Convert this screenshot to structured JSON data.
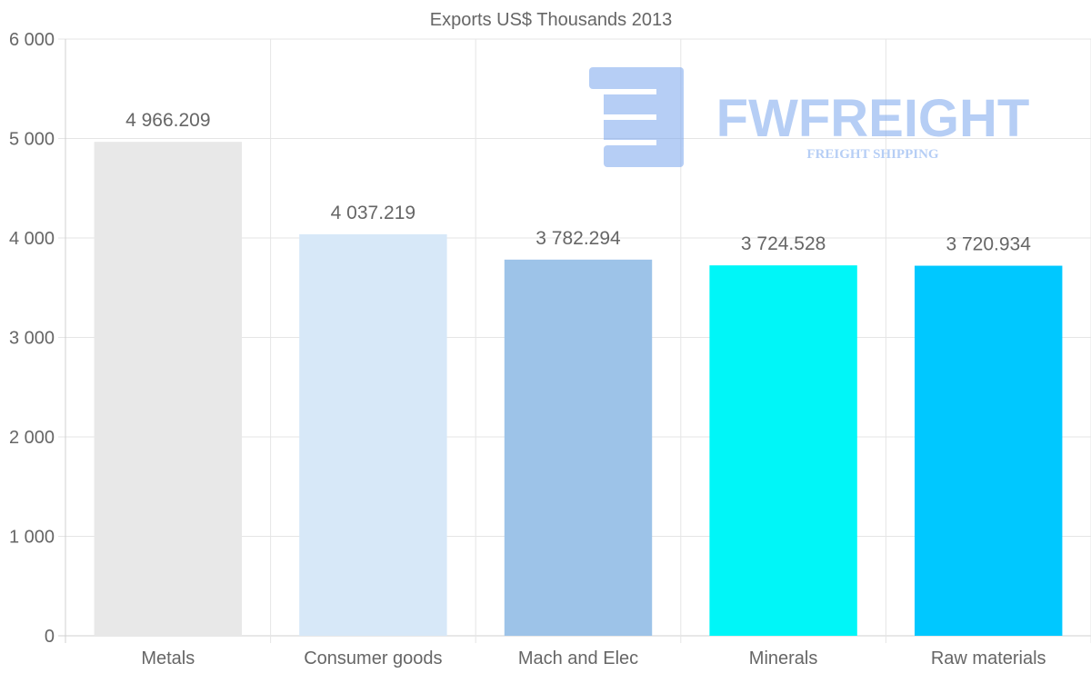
{
  "chart_data": {
    "type": "bar",
    "title": "Exports US$ Thousands 2013",
    "categories": [
      "Metals",
      "Consumer goods",
      "Mach and Elec",
      "Minerals",
      "Raw materials"
    ],
    "values": [
      4966.209,
      4037.219,
      3782.294,
      3724.528,
      3720.934
    ],
    "value_labels": [
      "4 966.209",
      "4 037.219",
      "3 782.294",
      "3 724.528",
      "3 720.934"
    ],
    "bar_colors": [
      "#e8e8e8",
      "#d7e8f8",
      "#9dc3e8",
      "#00f6f8",
      "#00c8ff"
    ],
    "ylim": [
      0,
      6000
    ],
    "yticks": [
      0,
      1000,
      2000,
      3000,
      4000,
      5000,
      6000
    ],
    "ytick_labels": [
      "0",
      "1 000",
      "2 000",
      "3 000",
      "4 000",
      "5 000",
      "6 000"
    ],
    "xlabel": "",
    "ylabel": "",
    "grid": true,
    "legend": "none"
  },
  "watermark": {
    "name": "FWFREIGHT",
    "tagline": "FREIGHT SHIPPING",
    "color": "#7ba7ee"
  },
  "colors": {
    "grid": "#e5e5e5",
    "axis": "#d0d0d0",
    "text": "#666666"
  }
}
